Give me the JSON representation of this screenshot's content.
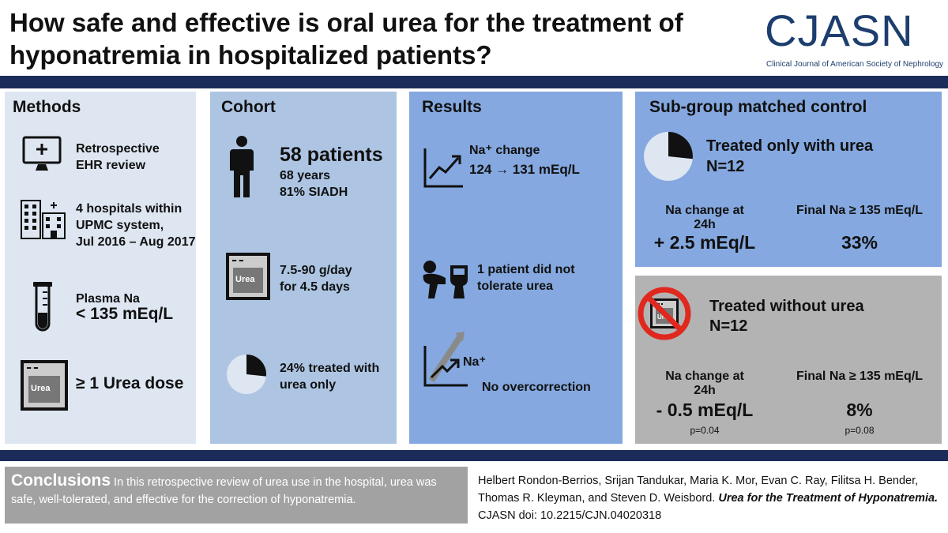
{
  "header": {
    "title": "How safe and effective is oral urea for the treatment of hyponatremia in hospitalized patients?",
    "logo": "CJASN",
    "logo_sub": "Clinical Journal of American Society of Nephrology"
  },
  "methods": {
    "heading": "Methods",
    "item1_l1": "Retrospective",
    "item1_l2": "EHR review",
    "item2_l1": "4 hospitals within",
    "item2_l2": "UPMC system,",
    "item2_l3": "Jul 2016 – Aug 2017",
    "item3_l1": "Plasma Na",
    "item3_l2": "< 135 mEq/L",
    "item4": "≥ 1 Urea dose",
    "urea_label": "Urea"
  },
  "cohort": {
    "heading": "Cohort",
    "patients": "58 patients",
    "age": "68 years",
    "siadh": "81% SIADH",
    "dose_l1": "7.5-90 g/day",
    "dose_l2": "for 4.5 days",
    "urea_label": "Urea",
    "only_l1": "24% treated with",
    "only_l2": "urea only"
  },
  "results": {
    "heading": "Results",
    "na_change_label": "Na⁺ change",
    "na_change_value": "124 → 131 mEq/L",
    "tol_l1": "1 patient did not",
    "tol_l2": "tolerate urea",
    "na_icon_label": "Na⁺",
    "overcorrection": "No overcorrection"
  },
  "subgroup": {
    "heading": "Sub-group matched control",
    "treated_only": "Treated only with urea",
    "n1": "N=12",
    "na_change_l1": "Na change at",
    "na_change_l2": "24h",
    "na_change_value": "+ 2.5 mEq/L",
    "final_na": "Final Na ≥ 135 mEq/L",
    "final_na_value": "33%",
    "treated_without": "Treated without urea",
    "n2": "N=12",
    "na_change2_l1": "Na change at",
    "na_change2_l2": "24h",
    "na_change2_value": "- 0.5 mEq/L",
    "p1": "p=0.04",
    "final_na2": "Final Na ≥ 135 mEq/L",
    "final_na2_value": "8%",
    "p2": "p=0.08",
    "urea_label": "Urea"
  },
  "footer": {
    "conclusions_heading": "Conclusions",
    "conclusions_text": "In this retrospective review of urea use in the hospital, urea was safe, well-tolerated, and effective for the correction of hyponatremia.",
    "authors": "Helbert Rondon-Berrios, Srijan Tandukar, Maria K. Mor, Evan C. Ray, Filitsa H. Bender, Thomas R. Kleyman, and Steven D. Weisbord.",
    "paper_title": "Urea for the Treatment of Hyponatremia.",
    "doi": "CJASN doi: 10.2215/CJN.04020318"
  },
  "colors": {
    "navy": "#1c2c5a",
    "methods_bg": "#dde6f1",
    "cohort_bg": "#adc5e3",
    "results_bg": "#84a8df",
    "control_bg": "#b3b3b3",
    "no_sign": "#e0281f"
  },
  "icons": [
    "computer-monitor-icon",
    "hospital-buildings-icon",
    "test-tube-icon",
    "urea-bag-icon",
    "person-icon",
    "pie-chart-icon",
    "trend-up-icon",
    "vomiting-person-icon",
    "na-arrow-icon",
    "no-sign-icon"
  ],
  "pies": {
    "cohort_urea_only_fraction": 0.24,
    "subgroup_fraction": 0.24
  }
}
